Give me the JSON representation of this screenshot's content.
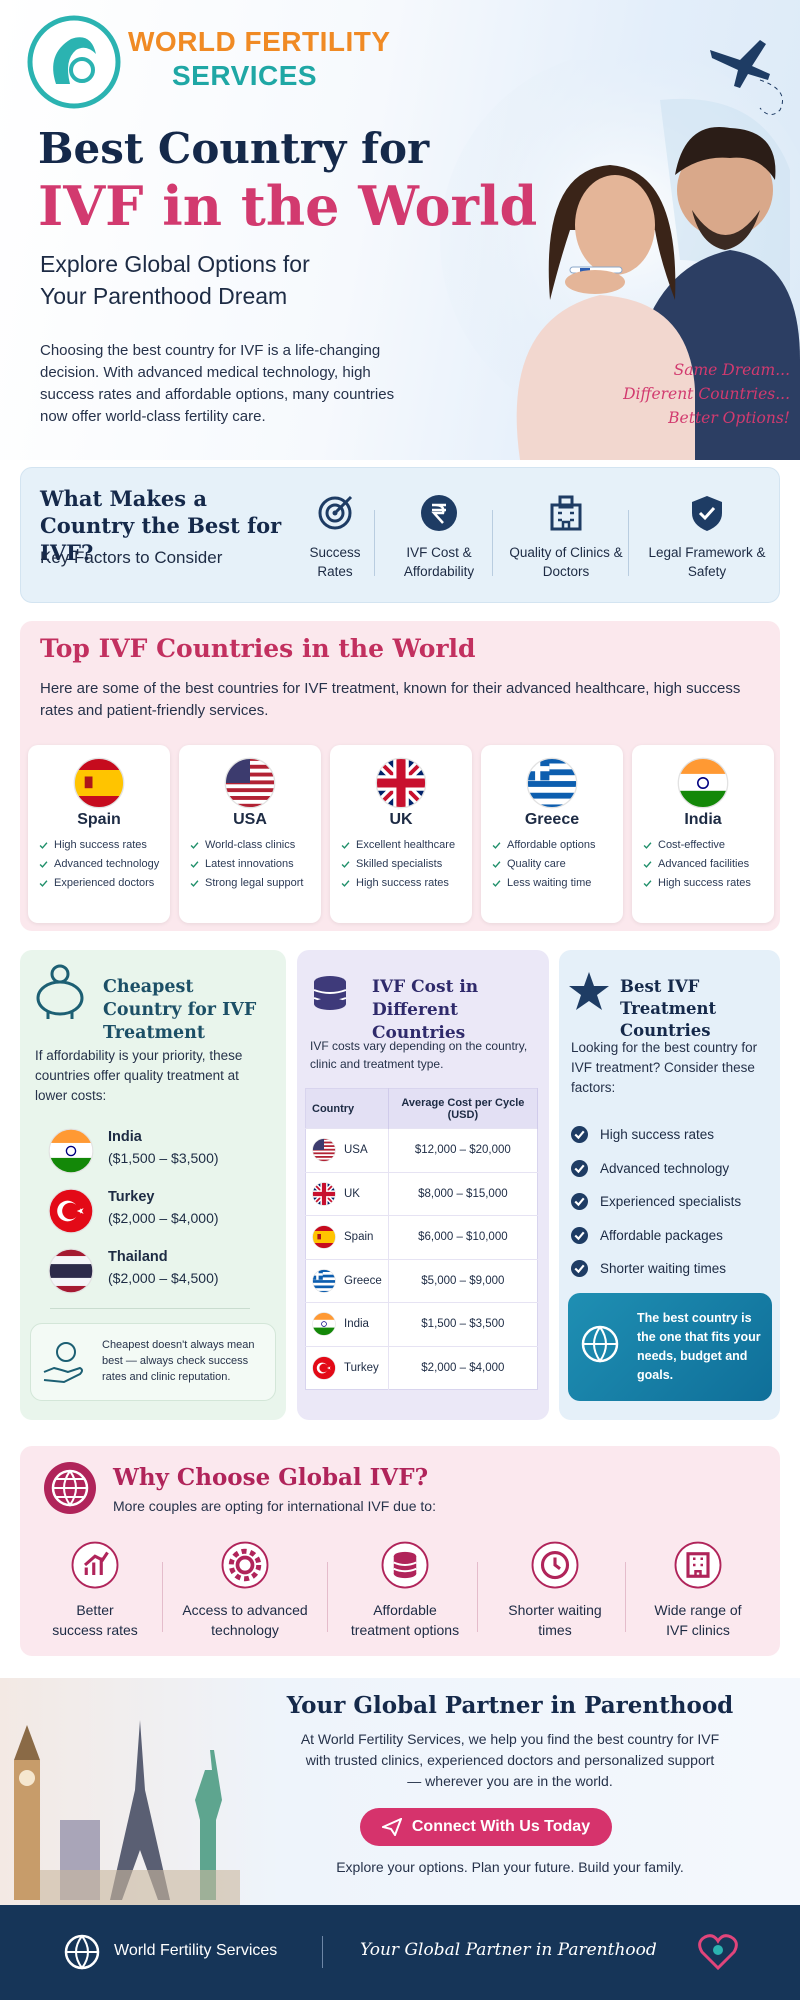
{
  "header": {
    "brand_line1": "WORLD FERTILITY",
    "brand_line2": "SERVICES"
  },
  "hero": {
    "title_line1": "Best Country for",
    "title_line2": "IVF in the World",
    "subtitle": "Explore Global Options for Your Parenthood Dream",
    "intro": "Choosing the best country for IVF is a life-changing decision. With advanced medical technology, high success rates and affordable options, many countries now offer world-class fertility care.",
    "tagline": [
      "Same Dream...",
      "Different Countries...",
      "Better Options!"
    ]
  },
  "factors": {
    "title": "What Makes a Country the Best for IVF?",
    "subtitle": "Key Factors to Consider",
    "items": [
      "Success Rates",
      "IVF Cost & Affordability",
      "Quality of Clinics & Doctors",
      "Legal Framework & Safety"
    ]
  },
  "top_countries": {
    "title": "Top IVF Countries in the World",
    "description": "Here are some of the best countries for IVF treatment, known for their advanced healthcare, high success rates and patient-friendly services.",
    "countries": [
      {
        "name": "Spain",
        "points": [
          "High success rates",
          "Advanced technology",
          "Experienced doctors"
        ]
      },
      {
        "name": "USA",
        "points": [
          "World-class clinics",
          "Latest innovations",
          "Strong legal support"
        ]
      },
      {
        "name": "UK",
        "points": [
          "Excellent healthcare",
          "Skilled specialists",
          "High success rates"
        ]
      },
      {
        "name": "Greece",
        "points": [
          "Affordable options",
          "Quality care",
          "Less waiting time"
        ]
      },
      {
        "name": "India",
        "points": [
          "Cost-effective",
          "Advanced facilities",
          "High success rates"
        ]
      }
    ]
  },
  "cheapest": {
    "title": "Cheapest Country for IVF Treatment",
    "description": "If affordability is your priority, these countries offer quality treatment at lower costs:",
    "countries": [
      {
        "name": "India",
        "range": "($1,500 – $3,500)"
      },
      {
        "name": "Turkey",
        "range": "($2,000 – $4,000)"
      },
      {
        "name": "Thailand",
        "range": "($2,000 – $4,500)"
      }
    ],
    "note": "Cheapest doesn't always mean best — always check success rates and clinic reputation."
  },
  "cost_table": {
    "title": "IVF Cost in Different Countries",
    "description": "IVF costs vary depending on the country, clinic and treatment type.",
    "headers": [
      "Country",
      "Average Cost per Cycle (USD)"
    ],
    "rows": [
      [
        "USA",
        "$12,000 – $20,000"
      ],
      [
        "UK",
        "$8,000 – $15,000"
      ],
      [
        "Spain",
        "$6,000 – $10,000"
      ],
      [
        "Greece",
        "$5,000 – $9,000"
      ],
      [
        "India",
        "$1,500 – $3,500"
      ],
      [
        "Turkey",
        "$2,000 – $4,000"
      ]
    ]
  },
  "best": {
    "title": "Best IVF Treatment Countries",
    "description": "Looking for the best country for IVF treatment? Consider these factors:",
    "factors": [
      "High success rates",
      "Advanced technology",
      "Experienced specialists",
      "Affordable packages",
      "Shorter waiting times"
    ],
    "callout": "The best country is the one that fits your needs, budget and goals."
  },
  "why": {
    "title": "Why Choose Global IVF?",
    "subtitle": "More couples are opting for international IVF due to:",
    "reasons": [
      "Better success rates",
      "Access to advanced technology",
      "Affordable treatment options",
      "Shorter waiting times",
      "Wide range of IVF clinics"
    ]
  },
  "partner": {
    "title": "Your Global Partner in Parenthood",
    "text": "At World Fertility Services, we help you find the best country for IVF with trusted clinics, experienced doctors and personalized support — wherever you are in the world.",
    "button": "Connect With Us Today",
    "footer_line": "Explore your options. Plan your future. Build your family."
  },
  "footer": {
    "brand": "World Fertility Services",
    "tagline": "Your Global Partner in Parenthood"
  }
}
